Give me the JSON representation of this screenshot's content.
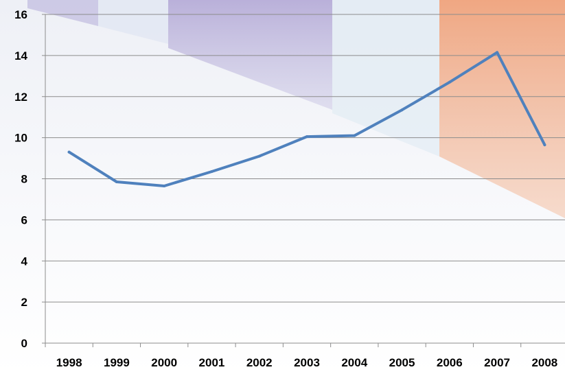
{
  "chart_data": {
    "type": "line",
    "title": "",
    "xlabel": "",
    "ylabel": "",
    "categories": [
      "1998",
      "1999",
      "2000",
      "2001",
      "2002",
      "2003",
      "2004",
      "2005",
      "2006",
      "2007",
      "2008"
    ],
    "series": [
      {
        "values": [
          9.3,
          7.85,
          7.65,
          8.35,
          9.1,
          10.05,
          10.1,
          11.35,
          12.7,
          14.15,
          9.65
        ]
      }
    ],
    "ylim": [
      0,
      16
    ],
    "yticks": [
      0,
      2,
      4,
      6,
      8,
      10,
      12,
      14,
      16
    ],
    "grid": true,
    "legend": "none",
    "colors": {
      "line": "#4f81bd",
      "grid": "#8c8c8c",
      "text": "#000000"
    }
  }
}
